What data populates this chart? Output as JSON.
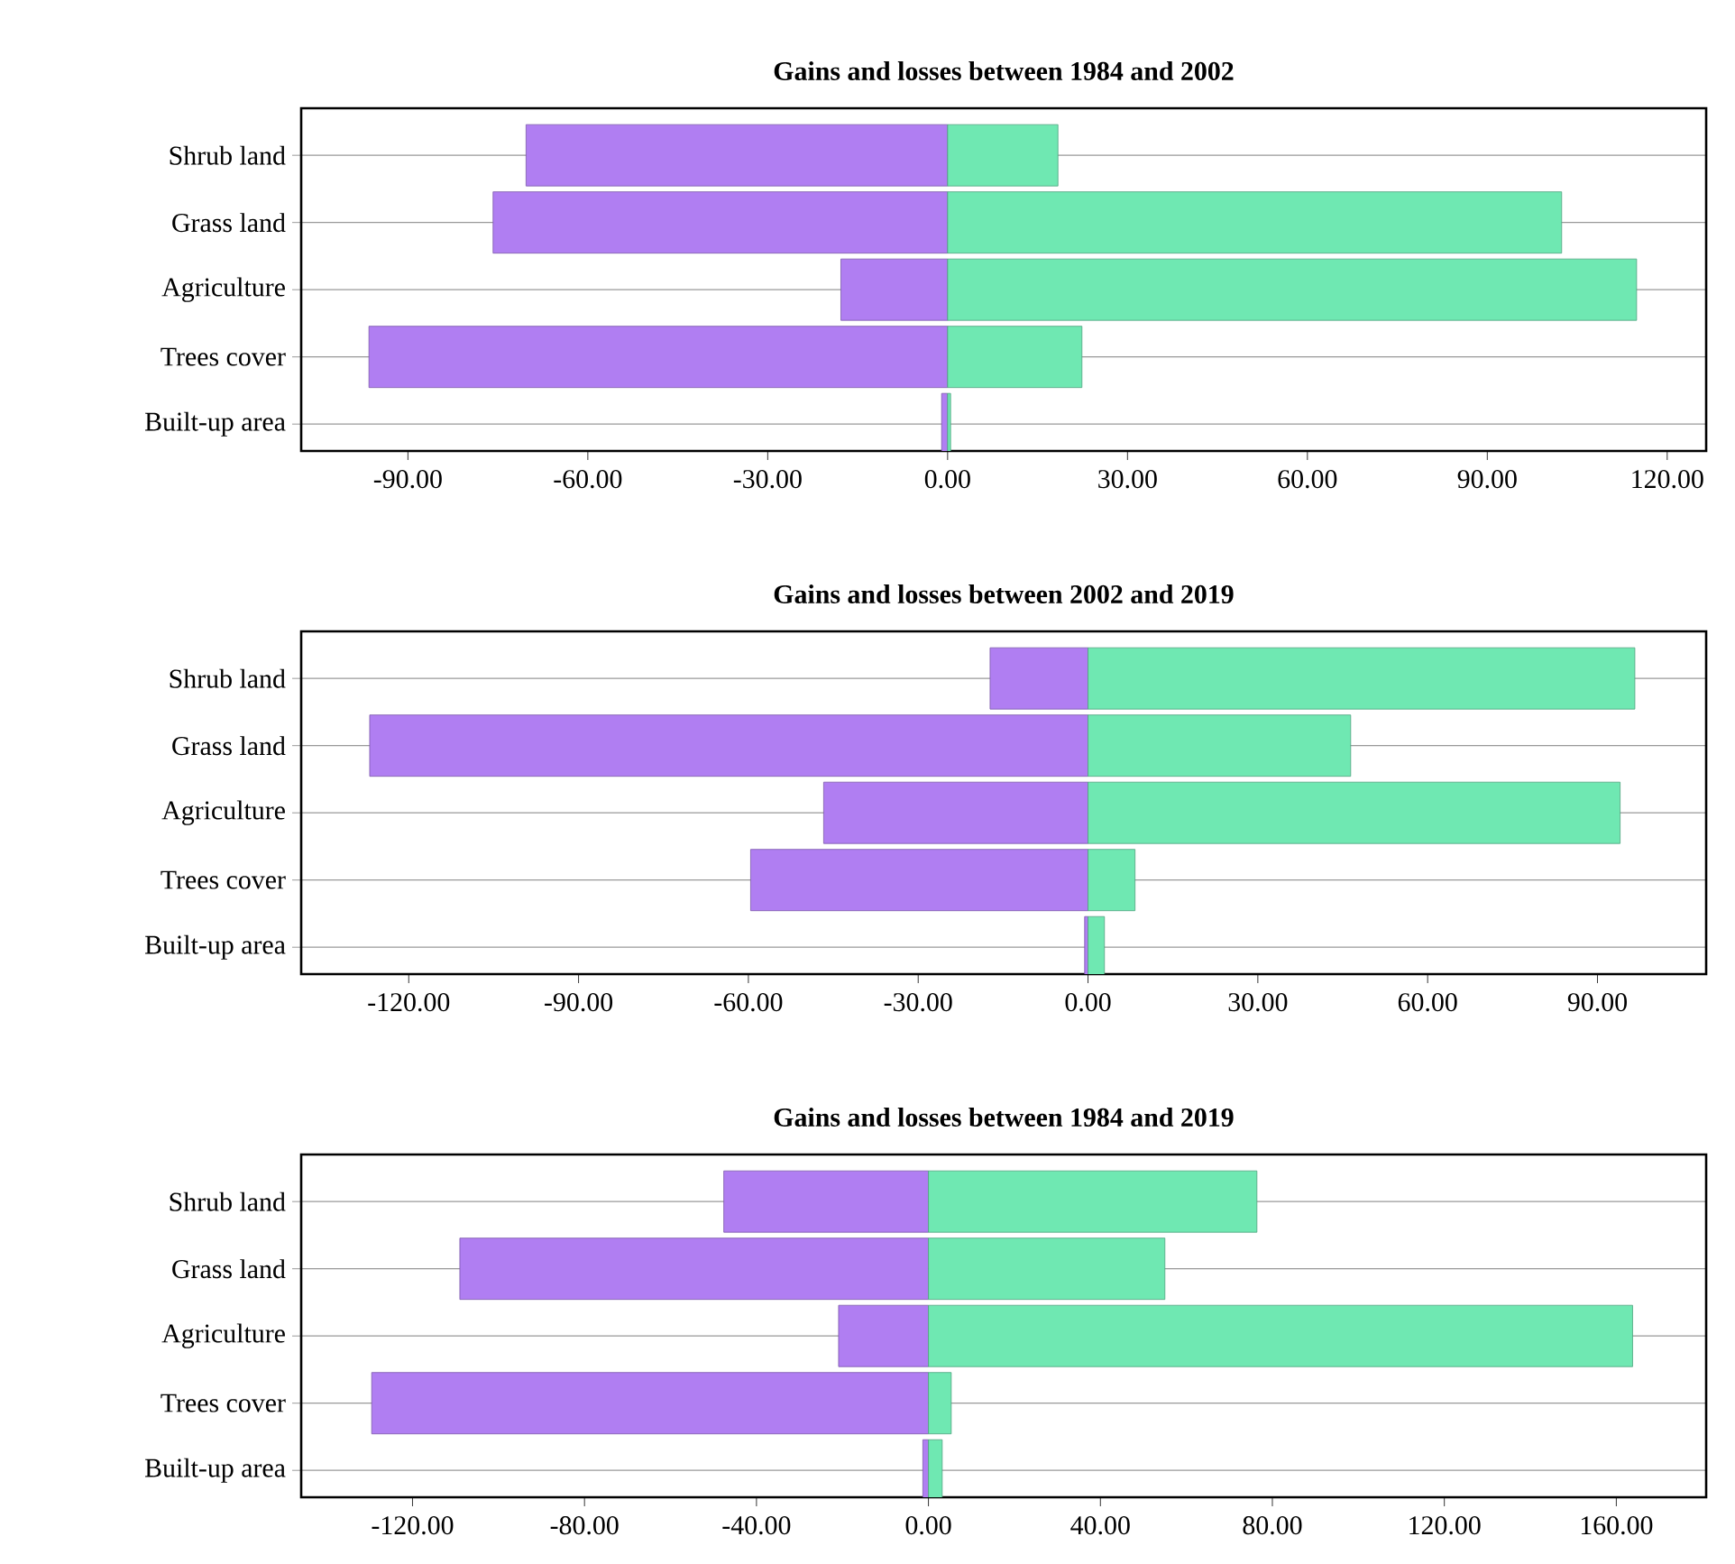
{
  "chart_data": [
    {
      "type": "bar",
      "orientation": "horizontal",
      "stacked": true,
      "title": "Gains and losses between 1984 and 2002",
      "categories": [
        "Shrub land",
        "Grass land",
        "Agriculture",
        "Trees cover",
        "Built-up area"
      ],
      "series": [
        {
          "color": "#b07ef2",
          "values": [
            -70.3,
            -75.8,
            -17.8,
            -96.5,
            -1.0
          ]
        },
        {
          "color": "#6fe8b2",
          "values": [
            18.4,
            102.4,
            114.9,
            22.4,
            0.5
          ]
        }
      ],
      "xlim": [
        -107.8,
        126.5
      ],
      "xticks": [
        {
          "value": -90,
          "label": "-90.00"
        },
        {
          "value": -60,
          "label": "-60.00"
        },
        {
          "value": -30,
          "label": "-30.00"
        },
        {
          "value": 0,
          "label": "0.00"
        },
        {
          "value": 30,
          "label": "30.00"
        },
        {
          "value": 60,
          "label": "60.00"
        },
        {
          "value": 90,
          "label": "90.00"
        },
        {
          "value": 120,
          "label": "120.00"
        }
      ],
      "grid": "y"
    },
    {
      "type": "bar",
      "orientation": "horizontal",
      "stacked": true,
      "title": "Gains and losses between 2002 and 2019",
      "categories": [
        "Shrub land",
        "Grass land",
        "Agriculture",
        "Trees cover",
        "Built-up area"
      ],
      "series": [
        {
          "color": "#b07ef2",
          "values": [
            -17.3,
            -126.9,
            -46.7,
            -59.6,
            -0.6
          ]
        },
        {
          "color": "#6fe8b2",
          "values": [
            96.6,
            46.4,
            94.0,
            8.3,
            2.9
          ]
        }
      ],
      "xlim": [
        -139,
        109.2
      ],
      "xticks": [
        {
          "value": -120,
          "label": "-120.00"
        },
        {
          "value": -90,
          "label": "-90.00"
        },
        {
          "value": -60,
          "label": "-60.00"
        },
        {
          "value": -30,
          "label": "-30.00"
        },
        {
          "value": 0,
          "label": "0.00"
        },
        {
          "value": 30,
          "label": "30.00"
        },
        {
          "value": 60,
          "label": "60.00"
        },
        {
          "value": 90,
          "label": "90.00"
        }
      ],
      "grid": "y"
    },
    {
      "type": "bar",
      "orientation": "horizontal",
      "stacked": true,
      "title": "Gains and losses between 1984 and 2019",
      "categories": [
        "Shrub land",
        "Grass land",
        "Agriculture",
        "Trees cover",
        "Built-up area"
      ],
      "series": [
        {
          "color": "#b07ef2",
          "values": [
            -47.6,
            -109.0,
            -20.9,
            -129.5,
            -1.3
          ]
        },
        {
          "color": "#6fe8b2",
          "values": [
            76.4,
            55.0,
            163.8,
            5.3,
            3.2
          ]
        }
      ],
      "xlim": [
        -145.9,
        180.9
      ],
      "xticks": [
        {
          "value": -120,
          "label": "-120.00"
        },
        {
          "value": -80,
          "label": "-80.00"
        },
        {
          "value": -40,
          "label": "-40.00"
        },
        {
          "value": 0,
          "label": "0.00"
        },
        {
          "value": 40,
          "label": "40.00"
        },
        {
          "value": 80,
          "label": "80.00"
        },
        {
          "value": 120,
          "label": "120.00"
        },
        {
          "value": 160,
          "label": "160.00"
        }
      ],
      "grid": "y"
    }
  ]
}
